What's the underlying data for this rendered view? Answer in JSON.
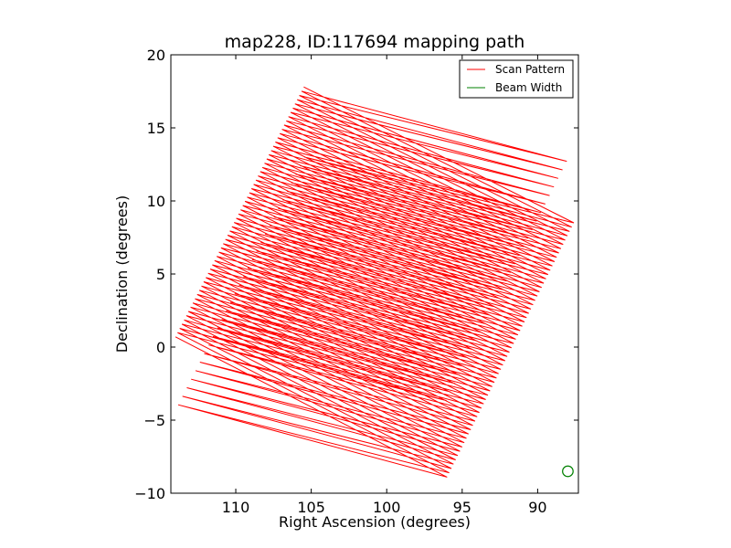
{
  "chart_data": {
    "type": "line",
    "title": "map228, ID:117694 mapping path",
    "xlabel": "Right Ascension (degrees)",
    "ylabel": "Declination (degrees)",
    "xlim": [
      114.3,
      87.3
    ],
    "ylim": [
      -10,
      20
    ],
    "x_ticks": [
      110,
      105,
      100,
      95,
      90
    ],
    "x_tick_labels": [
      "110",
      "105",
      "100",
      "95",
      "90"
    ],
    "y_ticks": [
      -10,
      -5,
      0,
      5,
      10,
      15,
      20
    ],
    "y_tick_labels": [
      "−10",
      "−5",
      "0",
      "5",
      "10",
      "15",
      "20"
    ],
    "legend_position": "top-right",
    "series": [
      {
        "name": "Scan Pattern",
        "color": "#ff0000",
        "kind": "raster",
        "corners": {
          "top": [
            105.5,
            17.8
          ],
          "right": [
            87.6,
            8.5
          ],
          "bottom": [
            96.0,
            -8.9
          ],
          "left": [
            114.0,
            0.7
          ]
        },
        "n_lines": 60
      },
      {
        "name": "Beam Width",
        "color": "#008000",
        "kind": "marker",
        "center": [
          88.0,
          -8.5
        ],
        "radius": 0.35
      }
    ]
  }
}
